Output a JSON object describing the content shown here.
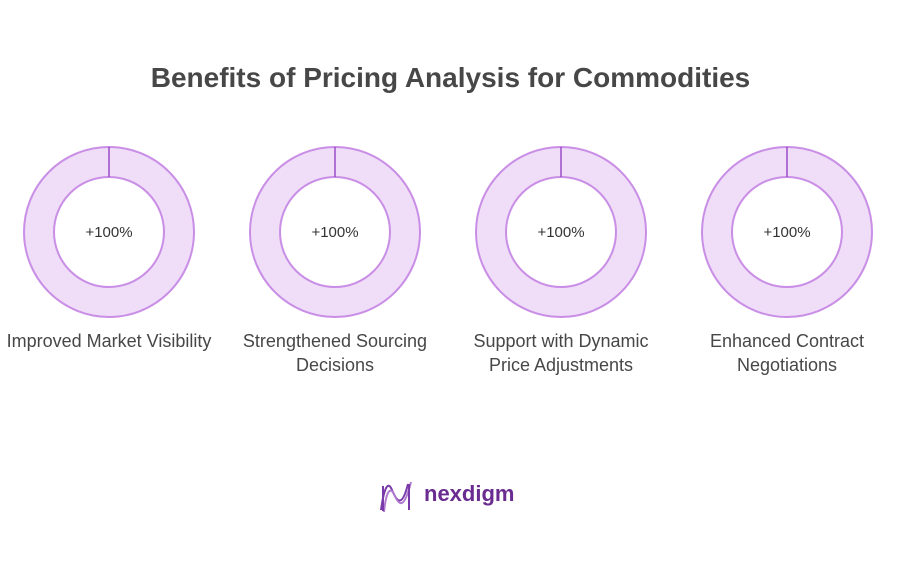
{
  "title": "Benefits of Pricing Analysis for Commodities",
  "items": [
    {
      "label": "Improved Market Visibility",
      "value": 100,
      "value_label": "+100%"
    },
    {
      "label": "Strengthened Sourcing Decisions",
      "value": 100,
      "value_label": "+100%"
    },
    {
      "label": "Support with Dynamic Price Adjustments",
      "value": 100,
      "value_label": "+100%"
    },
    {
      "label": "Enhanced Contract Negotiations",
      "value": 100,
      "value_label": "+100%"
    }
  ],
  "logo": "nexdigm"
}
